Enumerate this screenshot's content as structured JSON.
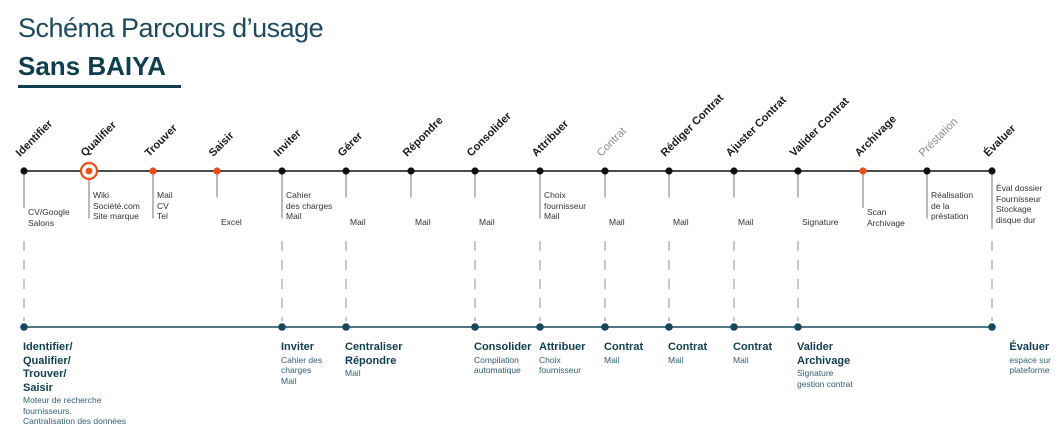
{
  "header": {
    "title": "Schéma Parcours d’usage",
    "subtitle": "Sans BAIYA"
  },
  "colors": {
    "line_top": "#111111",
    "line_bottom": "#15485a",
    "accent": "#ee4d14",
    "dash": "#888888"
  },
  "steps": [
    {
      "label": "Identifier",
      "tools": [
        "CV/Google",
        "Salons"
      ],
      "marker": "dot"
    },
    {
      "label": "Qualifier",
      "tools": [
        "Wiki",
        "Société.com",
        "Site marque"
      ],
      "marker": "target"
    },
    {
      "label": "Trouver",
      "tools": [
        "Mail",
        "CV",
        "Tel"
      ],
      "marker": "orange"
    },
    {
      "label": "Saisir",
      "tools": [
        "Excel"
      ],
      "marker": "orange"
    },
    {
      "label": "Inviter",
      "tools": [
        "Cahier",
        "des charges",
        "Mail"
      ],
      "marker": "dot"
    },
    {
      "label": "Gérer",
      "tools": [
        "Mail"
      ],
      "marker": "dot"
    },
    {
      "label": "Répondre",
      "tools": [
        "Mail"
      ],
      "marker": "dot"
    },
    {
      "label": "Consolider",
      "tools": [
        "Mail"
      ],
      "marker": "dot"
    },
    {
      "label": "Attribuer",
      "tools": [
        "Choix",
        "fournisseur",
        "Mail"
      ],
      "marker": "dot"
    },
    {
      "label": "Contrat",
      "tools": [
        "Mail"
      ],
      "marker": "dot",
      "dim": true
    },
    {
      "label": "Rédiger Contrat",
      "tools": [
        "Mail"
      ],
      "marker": "dot"
    },
    {
      "label": "Ajuster Contrat",
      "tools": [
        "Mail"
      ],
      "marker": "dot"
    },
    {
      "label": "Valider Contrat",
      "tools": [
        "Signature"
      ],
      "marker": "dot"
    },
    {
      "label": "Archivage",
      "tools": [
        "Scan",
        "Archivage"
      ],
      "marker": "orange"
    },
    {
      "label": "Préstation",
      "tools": [
        "Réalisation",
        "de la",
        "préstation"
      ],
      "marker": "dot",
      "dim": true
    },
    {
      "label": "Évaluer",
      "tools": [
        "Éval dossier",
        "Fournisseur",
        "Stockage",
        "disque dur"
      ],
      "marker": "dot"
    }
  ],
  "baiya": [
    {
      "step": 0,
      "title": [
        "Identifier/",
        "Qualifier/",
        "Trouver/",
        "Saisir"
      ],
      "desc": [
        "Moteur de recherche",
        "fournisseurs.",
        "Cantralisation des données"
      ]
    },
    {
      "step": 4,
      "title": [
        "Inviter"
      ],
      "desc": [
        "Cahier des",
        "charges",
        "Mail"
      ]
    },
    {
      "step": 5,
      "title": [
        "Centraliser",
        "Répondre"
      ],
      "desc": [
        "Mail"
      ]
    },
    {
      "step": 7,
      "title": [
        "Consolider"
      ],
      "desc": [
        "Compilation",
        "automatique"
      ]
    },
    {
      "step": 8,
      "title": [
        "Attribuer"
      ],
      "desc": [
        "Choix",
        "fournisseur"
      ]
    },
    {
      "step": 9,
      "title": [
        "Contrat"
      ],
      "desc": [
        "Mail"
      ]
    },
    {
      "step": 10,
      "title": [
        "Contrat"
      ],
      "desc": [
        "Mail"
      ]
    },
    {
      "step": 11,
      "title": [
        "Contrat"
      ],
      "desc": [
        "Mail"
      ]
    },
    {
      "step": 12,
      "title": [
        "Valider",
        "Archivage"
      ],
      "desc": [
        "Signature",
        "gestion contrat"
      ]
    },
    {
      "step": 15,
      "title": [
        "Évaluer"
      ],
      "desc": [
        "espace sur",
        "plateforme"
      ]
    }
  ]
}
